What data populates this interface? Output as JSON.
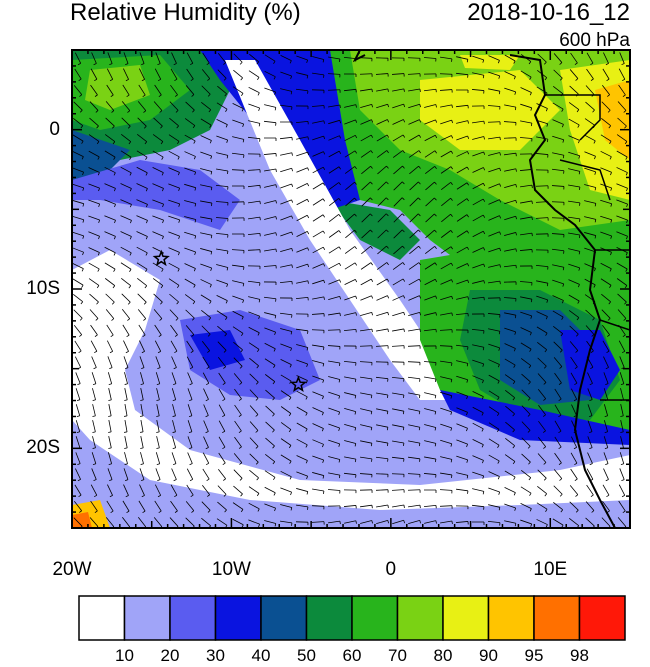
{
  "header": {
    "title": "Relative Humidity (%)",
    "timestamp": "2018-10-16_12",
    "level": "600 hPa"
  },
  "map": {
    "lat_labels": [
      {
        "lat": 0,
        "label": "0"
      },
      {
        "lat": -10,
        "label": "10S"
      },
      {
        "lat": -20,
        "label": "20S"
      }
    ],
    "lon_labels": [
      {
        "lon": -20,
        "label": "20W"
      },
      {
        "lon": -10,
        "label": "10W"
      },
      {
        "lon": 0,
        "label": "0"
      },
      {
        "lon": 10,
        "label": "10E"
      }
    ],
    "extent": {
      "lon_min": -20,
      "lon_max": 15,
      "lat_min": -25,
      "lat_max": 5
    },
    "markers": [
      {
        "name": "star-marker",
        "lon": -14.4,
        "lat": -8.1
      },
      {
        "name": "star-marker",
        "lon": -5.8,
        "lat": -16.0
      }
    ]
  },
  "colorbar": {
    "colors": [
      "#ffffff",
      "#a0a4f8",
      "#5a5cf0",
      "#0a14e0",
      "#0a5092",
      "#0c8a3c",
      "#28b41c",
      "#7ad214",
      "#e8f014",
      "#ffc400",
      "#ff7000",
      "#ff1808"
    ],
    "labels": [
      "10",
      "20",
      "30",
      "40",
      "50",
      "60",
      "70",
      "80",
      "90",
      "95",
      "98"
    ]
  }
}
